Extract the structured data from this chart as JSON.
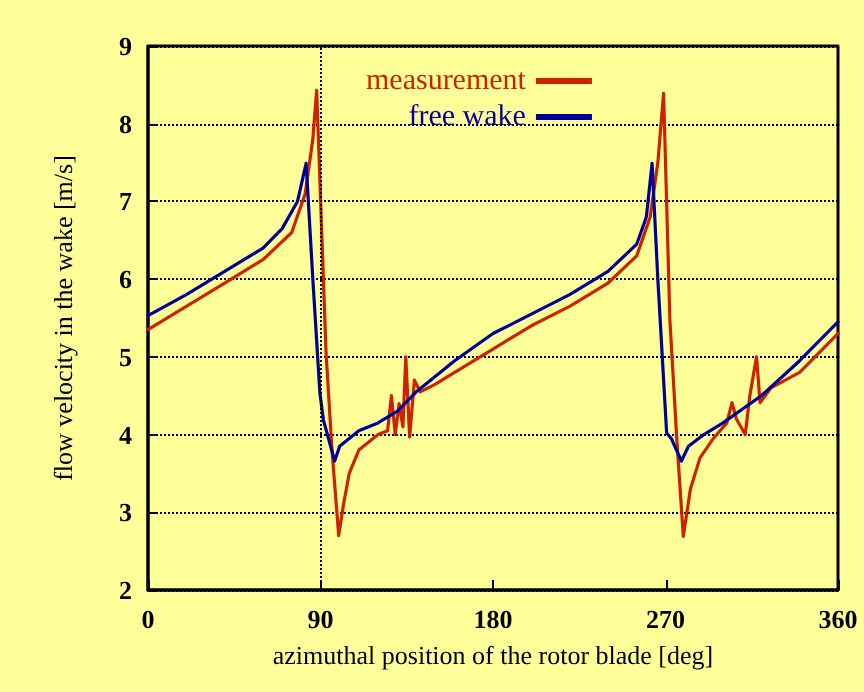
{
  "chart_data": {
    "type": "line",
    "xlabel": "azimuthal position of the rotor blade [deg]",
    "ylabel": "flow velocity in the wake [m/s]",
    "xlim": [
      0,
      360
    ],
    "xticks": [
      0,
      90,
      180,
      270,
      360
    ],
    "ylim": [
      2,
      9
    ],
    "yticks": [
      2,
      3,
      4,
      5,
      6,
      7,
      8,
      9
    ],
    "grid": "y",
    "legend": "top",
    "marker": "none",
    "line_style": "solid",
    "ref_lines": [
      {
        "axis": "x",
        "value": 90,
        "color": "#000000",
        "line_style": "dotted"
      }
    ],
    "series": [
      {
        "name": "measurement",
        "color": "#cc2200",
        "x": [
          0,
          20,
          40,
          60,
          75,
          82,
          86,
          88,
          92.9,
          96,
          99.5,
          102,
          105,
          110,
          120,
          125,
          127,
          129,
          131,
          133,
          134.5,
          136.5,
          139,
          142,
          150,
          160,
          180,
          200,
          220,
          240,
          255,
          262,
          266,
          269,
          272.3,
          276,
          279.3,
          283,
          288,
          295,
          302,
          304.7,
          307,
          311.6,
          314,
          317.5,
          319.3,
          325,
          340,
          360
        ],
        "values": [
          5.35,
          5.65,
          5.95,
          6.25,
          6.6,
          7.1,
          7.8,
          8.43,
          5.05,
          3.8,
          2.7,
          3.1,
          3.5,
          3.8,
          4.0,
          4.05,
          4.5,
          4.0,
          4.4,
          4.1,
          5.0,
          3.97,
          4.7,
          4.55,
          4.65,
          4.8,
          5.1,
          5.4,
          5.65,
          5.95,
          6.3,
          6.8,
          7.5,
          8.39,
          5.47,
          3.9,
          2.69,
          3.3,
          3.7,
          3.95,
          4.15,
          4.41,
          4.2,
          4.0,
          4.5,
          5.0,
          4.41,
          4.6,
          4.8,
          5.3
        ]
      },
      {
        "name": "free wake",
        "color": "#000099",
        "x": [
          0,
          20,
          40,
          60,
          70,
          78,
          82.5,
          86,
          89.7,
          91.5,
          97.4,
          100,
          110,
          120,
          130,
          140,
          150,
          160,
          180,
          200,
          220,
          240,
          255,
          260,
          263,
          266,
          270.6,
          273,
          278.3,
          282,
          290,
          300,
          320,
          340,
          360
        ],
        "values": [
          5.53,
          5.8,
          6.1,
          6.4,
          6.65,
          7.0,
          7.49,
          6.0,
          4.53,
          4.19,
          3.66,
          3.85,
          4.05,
          4.15,
          4.3,
          4.55,
          4.75,
          4.95,
          5.3,
          5.55,
          5.8,
          6.1,
          6.45,
          6.8,
          7.49,
          6.0,
          4.02,
          3.95,
          3.66,
          3.85,
          4.0,
          4.15,
          4.5,
          4.95,
          5.45
        ]
      }
    ]
  }
}
